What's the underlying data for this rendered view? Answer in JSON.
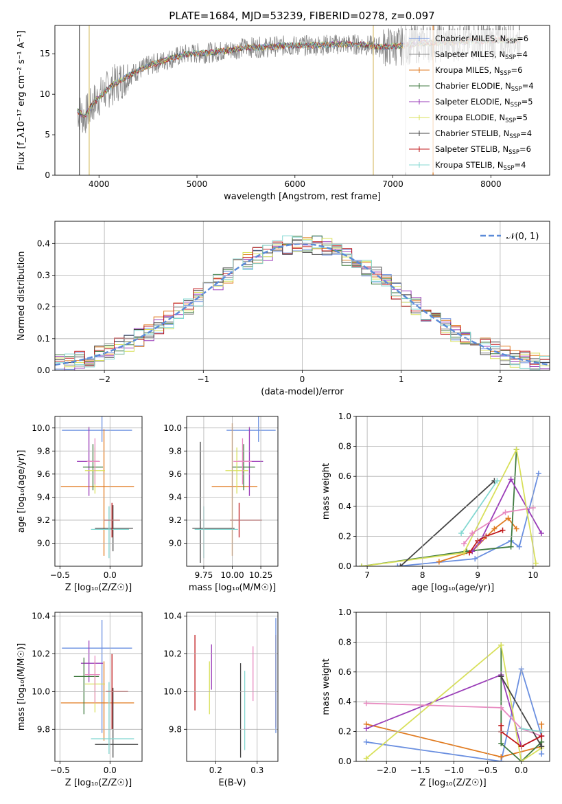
{
  "title": "PLATE=1684, MJD=53239, FIBERID=0278, z=0.097",
  "colors": {
    "Chabrier MILES": "#6a8fe0",
    "Salpeter MILES": "#888888",
    "Kroupa MILES": "#e07a1f",
    "Chabrier ELODIE": "#3f7a3f",
    "Salpeter ELODIE": "#9a3cb8",
    "Kroupa ELODIE": "#d8e05a",
    "Chabrier STELIB": "#444444",
    "Salpeter STELIB": "#c0191b",
    "Kroupa STELIB": "#84d8d2",
    "gaussian": "#5b8bd8",
    "pink": "#e889c0",
    "lime": "#c8e04a"
  },
  "chart_data": [
    {
      "type": "line",
      "panel": "spectrum",
      "xlabel": "wavelength [Angstrom, rest frame]",
      "ylabel": "Flux [f_λ10⁻¹⁷ erg cm⁻² s⁻¹ A⁻¹]",
      "xlim": [
        3550,
        8600
      ],
      "ylim": [
        0,
        18.5
      ],
      "xticks": [
        "4000",
        "5000",
        "6000",
        "7000",
        "8000"
      ],
      "yticks": [
        "0",
        "5",
        "10",
        "15"
      ],
      "legend_position": "top-right",
      "legend": [
        {
          "name": "Chabrier MILES, N_SSP=6",
          "label": "Chabrier MILES, N",
          "sub": "SSP",
          "suffix": "=6",
          "color": "#6a8fe0"
        },
        {
          "name": "Salpeter MILES, N_SSP=4",
          "label": "Salpeter MILES, N",
          "sub": "SSP",
          "suffix": "=4",
          "color": "#888888"
        },
        {
          "name": "Kroupa MILES, N_SSP=6",
          "label": "Kroupa MILES, N",
          "sub": "SSP",
          "suffix": "=6",
          "color": "#e07a1f"
        },
        {
          "name": "Chabrier ELODIE, N_SSP=4",
          "label": "Chabrier ELODIE, N",
          "sub": "SSP",
          "suffix": "=4",
          "color": "#3f7a3f"
        },
        {
          "name": "Salpeter ELODIE, N_SSP=5",
          "label": "Salpeter ELODIE, N",
          "sub": "SSP",
          "suffix": "=5",
          "color": "#9a3cb8"
        },
        {
          "name": "Kroupa ELODIE, N_SSP=5",
          "label": "Kroupa ELODIE, N",
          "sub": "SSP",
          "suffix": "=5",
          "color": "#d8e05a"
        },
        {
          "name": "Chabrier STELIB, N_SSP=4",
          "label": "Chabrier STELIB, N",
          "sub": "SSP",
          "suffix": "=4",
          "color": "#444444"
        },
        {
          "name": "Salpeter STELIB, N_SSP=6",
          "label": "Salpeter STELIB, N",
          "sub": "SSP",
          "suffix": "=6",
          "color": "#c0191b"
        },
        {
          "name": "Kroupa STELIB, N_SSP=4",
          "label": "Kroupa STELIB, N",
          "sub": "SSP",
          "suffix": "=4",
          "color": "#84d8d2"
        }
      ],
      "continuum": {
        "x": [
          3780,
          3850,
          3950,
          4050,
          4150,
          4300,
          4500,
          4700,
          4900,
          5100,
          5300,
          5500,
          5700,
          5900,
          6100,
          6300,
          6500,
          6700,
          6900,
          7100,
          7300,
          7500,
          7700,
          7900,
          8100,
          8300
        ],
        "y": [
          8.0,
          7.2,
          9.0,
          10.2,
          11.2,
          12.3,
          13.5,
          14.3,
          15.0,
          15.1,
          15.4,
          15.8,
          15.8,
          16.0,
          16.0,
          16.1,
          16.2,
          16.1,
          15.8,
          16.0,
          16.3,
          16.4,
          16.5,
          16.6,
          16.7,
          16.6
        ]
      },
      "spikes": [
        3800,
        3900,
        6800,
        7130,
        7410
      ]
    },
    {
      "type": "step-histogram",
      "panel": "residuals",
      "xlabel": "(data-model)/error",
      "ylabel": "Normed distribution",
      "xlim": [
        -2.5,
        2.5
      ],
      "ylim": [
        0,
        0.47
      ],
      "xticks": [
        "−2",
        "−1",
        "0",
        "1",
        "2"
      ],
      "yticks": [
        "0.0",
        "0.1",
        "0.2",
        "0.3",
        "0.4"
      ],
      "bin_width": 0.1,
      "legend": [
        {
          "name": "𝒩(0, 1)",
          "color": "#5b8bd8",
          "style": "dashed"
        }
      ],
      "legend_position": "top-right"
    },
    {
      "type": "scatter-errorbar",
      "panel": "age_vs_Z",
      "xlabel": "Z [log₁₀(Z/Z☉)]",
      "ylabel": "age [log₁₀(age/yr)]",
      "xlim": [
        -0.55,
        0.32
      ],
      "ylim": [
        8.8,
        10.1
      ],
      "xticks": [
        "−0.5",
        "0.0"
      ],
      "yticks": [
        "9.0",
        "9.2",
        "9.4",
        "9.6",
        "9.8",
        "10.0"
      ],
      "points": [
        {
          "color": "#6a8fe0",
          "x": -0.08,
          "xerr": [
            0.4,
            0.3
          ],
          "y": 9.98,
          "yerr": [
            0.1,
            0.12
          ]
        },
        {
          "color": "#e07a1f",
          "x": -0.06,
          "xerr": [
            0.43,
            0.3
          ],
          "y": 9.49,
          "yerr": [
            0.6,
            0.5
          ]
        },
        {
          "color": "#9a3cb8",
          "x": -0.21,
          "xerr": [
            0.12,
            0.1
          ],
          "y": 9.71,
          "yerr": [
            0.3,
            0.3
          ]
        },
        {
          "color": "#3f7a3f",
          "x": -0.17,
          "xerr": [
            0.1,
            0.1
          ],
          "y": 9.66,
          "yerr": [
            0.2,
            0.2
          ]
        },
        {
          "color": "#d8e05a",
          "x": -0.15,
          "xerr": [
            0.1,
            0.1
          ],
          "y": 9.63,
          "yerr": [
            0.2,
            0.2
          ]
        },
        {
          "color": "#e889c0",
          "x": -0.15,
          "xerr": [
            0.08,
            0.05
          ],
          "y": 9.71,
          "yerr": [
            0.2,
            0.2
          ]
        },
        {
          "color": "#444444",
          "x": 0.03,
          "xerr": [
            0.18,
            0.2
          ],
          "y": 9.13,
          "yerr": [
            0.2,
            0.2
          ]
        },
        {
          "color": "#84d8d2",
          "x": -0.01,
          "xerr": [
            0.18,
            0.2
          ],
          "y": 9.12,
          "yerr": [
            0.25,
            0.2
          ]
        },
        {
          "color": "#c0191b",
          "x": 0.02,
          "xerr": [
            0.08,
            0.08
          ],
          "y": 9.2,
          "yerr": [
            0.15,
            0.15
          ]
        }
      ]
    },
    {
      "type": "scatter-errorbar",
      "panel": "age_vs_mass",
      "xlabel": "mass [log₁₀(M/M☉)]",
      "xlim": [
        9.6,
        10.4
      ],
      "ylim": [
        8.8,
        10.1
      ],
      "xticks": [
        "9.75",
        "10.00",
        "10.25"
      ],
      "yticks": [
        "9.0",
        "9.2",
        "9.4",
        "9.6",
        "9.8",
        "10.0"
      ],
      "points": [
        {
          "color": "#6a8fe0",
          "x": 10.23,
          "xerr": [
            0.28,
            0.15
          ],
          "y": 9.98,
          "yerr": [
            0.1,
            0.12
          ]
        },
        {
          "color": "#e07a1f",
          "x": 10.0,
          "xerr": [
            0.18,
            0.22
          ],
          "y": 9.49,
          "yerr": [
            0.6,
            0.55
          ]
        },
        {
          "color": "#9a3cb8",
          "x": 10.15,
          "xerr": [
            0.1,
            0.12
          ],
          "y": 9.71,
          "yerr": [
            0.3,
            0.3
          ]
        },
        {
          "color": "#3f7a3f",
          "x": 10.1,
          "xerr": [
            0.1,
            0.1
          ],
          "y": 9.66,
          "yerr": [
            0.2,
            0.2
          ]
        },
        {
          "color": "#d8e05a",
          "x": 10.04,
          "xerr": [
            0.1,
            0.1
          ],
          "y": 9.63,
          "yerr": [
            0.2,
            0.2
          ]
        },
        {
          "color": "#e889c0",
          "x": 10.09,
          "xerr": [
            0.08,
            0.08
          ],
          "y": 9.71,
          "yerr": [
            0.2,
            0.2
          ]
        },
        {
          "color": "#444444",
          "x": 9.72,
          "xerr": [
            0.07,
            0.3
          ],
          "y": 9.13,
          "yerr": [
            0.3,
            0.75
          ]
        },
        {
          "color": "#84d8d2",
          "x": 9.75,
          "xerr": [
            0.08,
            0.3
          ],
          "y": 9.12,
          "yerr": [
            0.25,
            0.2
          ]
        },
        {
          "color": "#c0191b",
          "x": 10.06,
          "xerr": [
            0.08,
            0.2
          ],
          "y": 9.2,
          "yerr": [
            0.15,
            0.15
          ]
        }
      ]
    },
    {
      "type": "line",
      "panel": "massweight_vs_age",
      "xlabel": "age [log₁₀(age/yr)]",
      "ylabel": "mass weight",
      "xlim": [
        6.8,
        10.3
      ],
      "ylim": [
        0,
        1.0
      ],
      "xticks": [
        "7",
        "8",
        "9",
        "10"
      ],
      "yticks": [
        "0.0",
        "0.2",
        "0.4",
        "0.6",
        "0.8",
        "1.0"
      ],
      "series": [
        {
          "color": "#6a8fe0",
          "x": [
            7.55,
            8.95,
            9.6,
            9.75,
            10.1
          ],
          "y": [
            0.0,
            0.05,
            0.17,
            0.13,
            0.62
          ]
        },
        {
          "color": "#e07a1f",
          "x": [
            8.3,
            8.9,
            9.3,
            9.55,
            9.7
          ],
          "y": [
            0.03,
            0.1,
            0.25,
            0.32,
            0.25
          ]
        },
        {
          "color": "#3f7a3f",
          "x": [
            6.9,
            8.8,
            9.6,
            9.7
          ],
          "y": [
            0.0,
            0.1,
            0.13,
            0.78
          ]
        },
        {
          "color": "#9a3cb8",
          "x": [
            8.9,
            9.05,
            9.6,
            10.15
          ],
          "y": [
            0.1,
            0.17,
            0.58,
            0.22
          ]
        },
        {
          "color": "#d8e05a",
          "x": [
            6.9,
            8.75,
            9.7,
            10.05
          ],
          "y": [
            0.0,
            0.09,
            0.78,
            0.02
          ]
        },
        {
          "color": "#e889c0",
          "x": [
            8.75,
            8.9,
            9.5,
            10.0
          ],
          "y": [
            0.15,
            0.22,
            0.36,
            0.39
          ]
        },
        {
          "color": "#444444",
          "x": [
            7.6,
            9.3
          ],
          "y": [
            0.0,
            0.57
          ]
        },
        {
          "color": "#84d8d2",
          "x": [
            8.7,
            9.35
          ],
          "y": [
            0.22,
            0.57
          ]
        },
        {
          "color": "#c0191b",
          "x": [
            8.85,
            9.0,
            9.15,
            9.45
          ],
          "y": [
            0.09,
            0.17,
            0.2,
            0.24
          ]
        }
      ]
    },
    {
      "type": "scatter-errorbar",
      "panel": "mass_vs_Z",
      "xlabel": "Z [log₁₀(Z/Z☉)]",
      "ylabel": "mass [log₁₀(M/M☉)]",
      "xlim": [
        -0.55,
        0.32
      ],
      "ylim": [
        9.63,
        10.42
      ],
      "xticks": [
        "−0.5",
        "0.0"
      ],
      "yticks": [
        "9.8",
        "10.0",
        "10.2",
        "10.4"
      ],
      "points": [
        {
          "color": "#6a8fe0",
          "x": -0.08,
          "xerr": [
            0.4,
            0.3
          ],
          "y": 10.23,
          "yerr": [
            0.45,
            0.15
          ]
        },
        {
          "color": "#e07a1f",
          "x": -0.06,
          "xerr": [
            0.43,
            0.3
          ],
          "y": 9.94,
          "yerr": [
            0.2,
            0.22
          ]
        },
        {
          "color": "#9a3cb8",
          "x": -0.21,
          "xerr": [
            0.08,
            0.14
          ],
          "y": 10.15,
          "yerr": [
            0.1,
            0.12
          ]
        },
        {
          "color": "#3f7a3f",
          "x": -0.26,
          "xerr": [
            0.1,
            0.15
          ],
          "y": 10.08,
          "yerr": [
            0.2,
            0.1
          ]
        },
        {
          "color": "#d8e05a",
          "x": -0.15,
          "xerr": [
            0.1,
            0.1
          ],
          "y": 10.04,
          "yerr": [
            0.15,
            0.12
          ]
        },
        {
          "color": "#e889c0",
          "x": -0.15,
          "xerr": [
            0.1,
            0.05
          ],
          "y": 10.09,
          "yerr": [
            0.15,
            0.1
          ]
        },
        {
          "color": "#444444",
          "x": 0.03,
          "xerr": [
            0.18,
            0.25
          ],
          "y": 9.72,
          "yerr": [
            0.07,
            0.3
          ]
        },
        {
          "color": "#84d8d2",
          "x": -0.01,
          "xerr": [
            0.18,
            0.25
          ],
          "y": 9.75,
          "yerr": [
            0.08,
            0.3
          ]
        },
        {
          "color": "#c0191b",
          "x": 0.02,
          "xerr": [
            0.06,
            0.16
          ],
          "y": 10.0,
          "yerr": [
            0.2,
            0.2
          ]
        }
      ]
    },
    {
      "type": "errorbar",
      "panel": "mass_vs_EBV",
      "xlabel": "E(B-V)",
      "xlim": [
        0.13,
        0.35
      ],
      "ylim": [
        9.63,
        10.42
      ],
      "xticks": [
        "0.1",
        "0.2",
        "0.3"
      ],
      "yticks": [
        "9.8",
        "10.0",
        "10.2",
        "10.4"
      ],
      "points": [
        {
          "color": "#c0191b",
          "x": 0.15,
          "y": 10.1,
          "yerr": [
            0.2,
            0.2
          ]
        },
        {
          "color": "#d8e05a",
          "x": 0.185,
          "y": 10.03,
          "yerr": [
            0.15,
            0.13
          ]
        },
        {
          "color": "#9a3cb8",
          "x": 0.19,
          "y": 10.13,
          "yerr": [
            0.12,
            0.12
          ]
        },
        {
          "color": "#444444",
          "x": 0.26,
          "y": 9.9,
          "yerr": [
            0.25,
            0.25
          ]
        },
        {
          "color": "#84d8d2",
          "x": 0.27,
          "y": 9.9,
          "yerr": [
            0.21,
            0.21
          ]
        },
        {
          "color": "#e889c0",
          "x": 0.29,
          "y": 10.1,
          "yerr": [
            0.15,
            0.14
          ]
        },
        {
          "color": "#e07a1f",
          "x": 0.345,
          "y": 10.06,
          "yerr": [
            0.25,
            0.24
          ]
        },
        {
          "color": "#6a8fe0",
          "x": 0.345,
          "y": 10.08,
          "yerr": [
            0.3,
            0.31
          ]
        }
      ]
    },
    {
      "type": "line",
      "panel": "massweight_vs_Z",
      "xlabel": "Z [log₁₀(Z/Z☉)]",
      "ylabel": "mass weight",
      "xlim": [
        -2.45,
        0.42
      ],
      "ylim": [
        0,
        1.0
      ],
      "xticks": [
        "−2.0",
        "−1.5",
        "−1.0",
        "−0.5",
        "0.0"
      ],
      "yticks": [
        "0.0",
        "0.2",
        "0.4",
        "0.6",
        "0.8",
        "1.0"
      ],
      "series": [
        {
          "color": "#6a8fe0",
          "x": [
            -2.3,
            -0.3,
            0.0,
            0.3,
            0.3
          ],
          "y": [
            0.13,
            0.0,
            0.62,
            0.17,
            0.05
          ]
        },
        {
          "color": "#e07a1f",
          "x": [
            -2.3,
            -0.3,
            0.3,
            0.3
          ],
          "y": [
            0.25,
            0.03,
            0.1,
            0.25
          ]
        },
        {
          "color": "#3f7a3f",
          "x": [
            -0.3,
            -0.3,
            0.0,
            0.3
          ],
          "y": [
            0.78,
            0.12,
            0.0,
            0.13
          ]
        },
        {
          "color": "#9a3cb8",
          "x": [
            -2.3,
            -0.3,
            0.0,
            0.3
          ],
          "y": [
            0.22,
            0.58,
            0.1,
            0.17
          ]
        },
        {
          "color": "#d8e05a",
          "x": [
            -2.3,
            -0.3,
            0.0,
            0.3
          ],
          "y": [
            0.02,
            0.78,
            0.0,
            0.09
          ]
        },
        {
          "color": "#e889c0",
          "x": [
            -2.3,
            -0.3,
            0.0,
            0.3
          ],
          "y": [
            0.39,
            0.36,
            0.22,
            0.17
          ]
        },
        {
          "color": "#444444",
          "x": [
            -0.3,
            0.3
          ],
          "y": [
            0.57,
            0.1
          ]
        },
        {
          "color": "#84d8d2",
          "x": [
            0.0,
            0.3
          ],
          "y": [
            0.22,
            0.2
          ]
        },
        {
          "color": "#c0191b",
          "x": [
            -0.3,
            -0.3,
            0.0,
            0.3
          ],
          "y": [
            0.24,
            0.2,
            0.1,
            0.17
          ]
        }
      ]
    }
  ]
}
